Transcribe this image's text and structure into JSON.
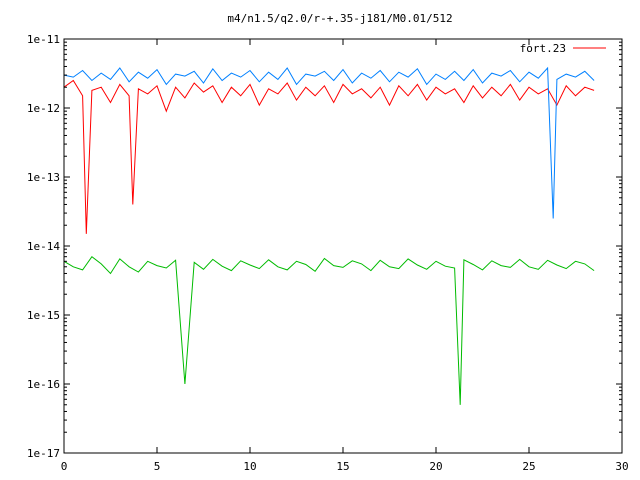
{
  "chart_data": {
    "type": "line",
    "title": "m4/n1.5/q2.0/r-+.35-j181/M0.01/512",
    "xlabel": "",
    "ylabel": "",
    "xlim": [
      0,
      30
    ],
    "ylim": [
      1e-17,
      1e-11
    ],
    "y_scale": "log",
    "x_ticks": [
      0,
      5,
      10,
      15,
      20,
      25,
      30
    ],
    "x_tick_labels": [
      "0",
      "5",
      "10",
      "15",
      "20",
      "25",
      "30"
    ],
    "y_ticks": [
      1e-17,
      1e-16,
      1e-15,
      1e-14,
      1e-13,
      1e-12,
      1e-11
    ],
    "y_tick_labels": [
      "1e-17",
      "1e-16",
      "1e-15",
      "1e-14",
      "1e-13",
      "1e-12",
      "1e-11"
    ],
    "grid": false,
    "legend": {
      "position": "top-right",
      "entries": [
        "fort.23"
      ]
    },
    "series": [
      {
        "name": "fort.23",
        "color": "#ff0000",
        "x": [
          0.0,
          0.5,
          1.0,
          1.2,
          1.5,
          2.0,
          2.5,
          3.0,
          3.5,
          3.7,
          4.0,
          4.5,
          5.0,
          5.5,
          6.0,
          6.5,
          7.0,
          7.5,
          8.0,
          8.5,
          9.0,
          9.5,
          10.0,
          10.5,
          11.0,
          11.5,
          12.0,
          12.5,
          13.0,
          13.5,
          14.0,
          14.5,
          15.0,
          15.5,
          16.0,
          16.5,
          17.0,
          17.5,
          18.0,
          18.5,
          19.0,
          19.5,
          20.0,
          20.5,
          21.0,
          21.5,
          22.0,
          22.5,
          23.0,
          23.5,
          24.0,
          24.5,
          25.0,
          25.5,
          26.0,
          26.5,
          27.0,
          27.5,
          28.0,
          28.5
        ],
        "values": [
          2e-12,
          2.5e-12,
          1.5e-12,
          1.5e-14,
          1.8e-12,
          2e-12,
          1.2e-12,
          2.2e-12,
          1.5e-12,
          4e-14,
          1.9e-12,
          1.6e-12,
          2.1e-12,
          9e-13,
          2e-12,
          1.4e-12,
          2.3e-12,
          1.7e-12,
          2.1e-12,
          1.2e-12,
          2e-12,
          1.5e-12,
          2.2e-12,
          1.1e-12,
          1.9e-12,
          1.6e-12,
          2.3e-12,
          1.3e-12,
          2e-12,
          1.5e-12,
          2.1e-12,
          1.2e-12,
          2.2e-12,
          1.6e-12,
          1.9e-12,
          1.4e-12,
          2e-12,
          1.1e-12,
          2.1e-12,
          1.5e-12,
          2.2e-12,
          1.3e-12,
          2e-12,
          1.6e-12,
          1.9e-12,
          1.2e-12,
          2.1e-12,
          1.4e-12,
          2e-12,
          1.5e-12,
          2.2e-12,
          1.3e-12,
          2e-12,
          1.6e-12,
          1.9e-12,
          1.1e-12,
          2.1e-12,
          1.5e-12,
          2e-12,
          1.8e-12
        ]
      },
      {
        "color": "#0080ff",
        "x": [
          0.0,
          0.5,
          1.0,
          1.5,
          2.0,
          2.5,
          3.0,
          3.5,
          4.0,
          4.5,
          5.0,
          5.5,
          6.0,
          6.5,
          7.0,
          7.5,
          8.0,
          8.5,
          9.0,
          9.5,
          10.0,
          10.5,
          11.0,
          11.5,
          12.0,
          12.5,
          13.0,
          13.5,
          14.0,
          14.5,
          15.0,
          15.5,
          16.0,
          16.5,
          17.0,
          17.5,
          18.0,
          18.5,
          19.0,
          19.5,
          20.0,
          20.5,
          21.0,
          21.5,
          22.0,
          22.5,
          23.0,
          23.5,
          24.0,
          24.5,
          25.0,
          25.5,
          26.0,
          26.3,
          26.5,
          27.0,
          27.5,
          28.0,
          28.5
        ],
        "values": [
          3e-12,
          2.8e-12,
          3.5e-12,
          2.5e-12,
          3.2e-12,
          2.6e-12,
          3.8e-12,
          2.4e-12,
          3.3e-12,
          2.7e-12,
          3.6e-12,
          2.2e-12,
          3.1e-12,
          2.9e-12,
          3.4e-12,
          2.3e-12,
          3.7e-12,
          2.5e-12,
          3.2e-12,
          2.8e-12,
          3.5e-12,
          2.4e-12,
          3.3e-12,
          2.6e-12,
          3.8e-12,
          2.2e-12,
          3.1e-12,
          2.9e-12,
          3.4e-12,
          2.5e-12,
          3.6e-12,
          2.3e-12,
          3.2e-12,
          2.7e-12,
          3.5e-12,
          2.4e-12,
          3.3e-12,
          2.8e-12,
          3.7e-12,
          2.2e-12,
          3.1e-12,
          2.6e-12,
          3.4e-12,
          2.5e-12,
          3.6e-12,
          2.3e-12,
          3.2e-12,
          2.9e-12,
          3.5e-12,
          2.4e-12,
          3.3e-12,
          2.7e-12,
          3.8e-12,
          2.5e-14,
          2.6e-12,
          3.1e-12,
          2.8e-12,
          3.4e-12,
          2.5e-12
        ]
      },
      {
        "color": "#00bb00",
        "x": [
          0.0,
          0.5,
          1.0,
          1.5,
          2.0,
          2.5,
          3.0,
          3.5,
          4.0,
          4.5,
          5.0,
          5.5,
          6.0,
          6.5,
          7.0,
          7.5,
          8.0,
          8.5,
          9.0,
          9.5,
          10.0,
          10.5,
          11.0,
          11.5,
          12.0,
          12.5,
          13.0,
          13.5,
          14.0,
          14.5,
          15.0,
          15.5,
          16.0,
          16.5,
          17.0,
          17.5,
          18.0,
          18.5,
          19.0,
          19.5,
          20.0,
          20.5,
          21.0,
          21.3,
          21.5,
          22.0,
          22.5,
          23.0,
          23.5,
          24.0,
          24.5,
          25.0,
          25.5,
          26.0,
          26.5,
          27.0,
          27.5,
          28.0,
          28.5
        ],
        "values": [
          6e-15,
          5e-15,
          4.5e-15,
          7e-15,
          5.5e-15,
          4e-15,
          6.5e-15,
          5e-15,
          4.2e-15,
          6e-15,
          5.2e-15,
          4.8e-15,
          6.2e-15,
          1e-16,
          5.8e-15,
          4.6e-15,
          6.4e-15,
          5.1e-15,
          4.4e-15,
          6.1e-15,
          5.3e-15,
          4.7e-15,
          6.3e-15,
          5e-15,
          4.5e-15,
          6e-15,
          5.4e-15,
          4.3e-15,
          6.6e-15,
          5.2e-15,
          4.9e-15,
          6.1e-15,
          5.5e-15,
          4.4e-15,
          6.2e-15,
          5e-15,
          4.7e-15,
          6.5e-15,
          5.3e-15,
          4.6e-15,
          6e-15,
          5.1e-15,
          4.8e-15,
          5e-17,
          6.3e-15,
          5.4e-15,
          4.5e-15,
          6.1e-15,
          5.2e-15,
          4.9e-15,
          6.4e-15,
          5e-15,
          4.6e-15,
          6.2e-15,
          5.3e-15,
          4.7e-15,
          6e-15,
          5.5e-15,
          4.4e-15
        ]
      }
    ]
  }
}
